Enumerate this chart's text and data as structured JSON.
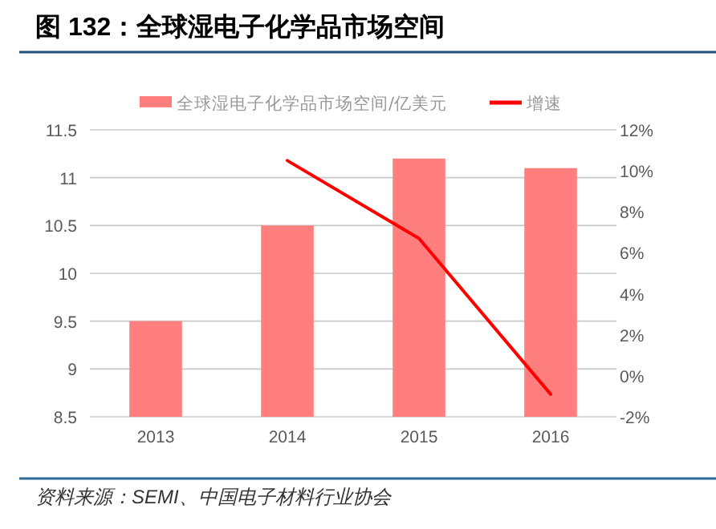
{
  "chart_data": {
    "type": "bar",
    "title": "图 132：全球湿电子化学品市场空间",
    "categories": [
      "2013",
      "2014",
      "2015",
      "2016"
    ],
    "series": [
      {
        "name": "全球湿电子化学品市场空间/亿美元",
        "color": "#ff7f7f",
        "values": [
          9.5,
          10.5,
          11.2,
          11.1
        ]
      },
      {
        "name": "增速",
        "type": "line",
        "axis": "y2",
        "color": "#ff0000",
        "values": [
          null,
          10.5,
          6.7,
          -0.9
        ]
      }
    ],
    "ylim": [
      8.5,
      11.5
    ],
    "yticks": [
      8.5,
      9,
      9.5,
      10,
      10.5,
      11,
      11.5
    ],
    "y2lim": [
      -2,
      12
    ],
    "y2ticks": [
      {
        "value": -2,
        "label": "-2%"
      },
      {
        "value": 0,
        "label": "0%"
      },
      {
        "value": 2,
        "label": "2%"
      },
      {
        "value": 4,
        "label": "4%"
      },
      {
        "value": 6,
        "label": "6%"
      },
      {
        "value": 8,
        "label": "8%"
      },
      {
        "value": 10,
        "label": "10%"
      },
      {
        "value": 12,
        "label": "12%"
      }
    ],
    "grid": "y",
    "legend": "top",
    "annotations": [
      "资料来源：SEMI、中国电子材料行业协会"
    ]
  }
}
